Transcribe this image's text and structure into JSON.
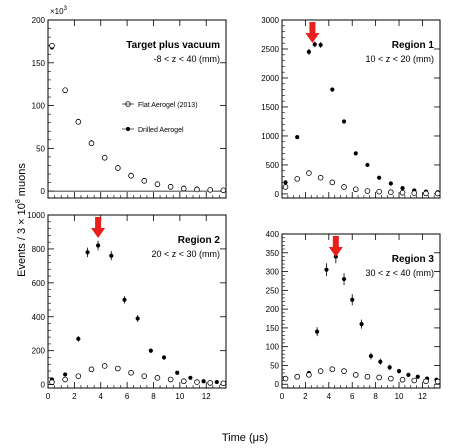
{
  "figure": {
    "ylabel": "Events / 3 × 10",
    "ylabel_exp": "8",
    "ylabel_suffix": " muons",
    "xlabel": "Time (μs)",
    "offset_label": "×10",
    "offset_exp": "3",
    "legend": {
      "open_label": "Flat Aerogel (2013)",
      "filled_label": "Drilled Aerogel"
    }
  },
  "chart_data": [
    {
      "type": "scatter",
      "title": "Target plus vacuum",
      "range_label": "-8 < z < 40 (mm)",
      "xlim": [
        0,
        13.5
      ],
      "ylim": [
        -8,
        200
      ],
      "y_ticks": [
        0,
        50,
        100,
        150,
        200
      ],
      "y_tick_labels": [
        "0",
        "50",
        "100",
        "150",
        "200"
      ],
      "x_ticks": [
        0,
        2,
        4,
        6,
        8,
        10,
        12
      ],
      "x_tick_labels": [
        "0",
        "2",
        "4",
        "6",
        "8",
        "10",
        "12"
      ],
      "show_x_tick_labels": false,
      "zero_line": true,
      "show_legend": true,
      "arrow_x": null,
      "series": [
        {
          "name": "Drilled Aerogel",
          "marker": "filled",
          "x": [
            0.3,
            1.3,
            2.3,
            3.3,
            4.3,
            5.3,
            6.3,
            7.3,
            8.3,
            9.3,
            10.3,
            11.3,
            12.3,
            13.3
          ],
          "y": [
            168,
            117,
            82,
            57,
            40,
            28,
            19,
            13,
            9,
            6,
            4,
            3,
            2,
            1.5
          ]
        },
        {
          "name": "Flat Aerogel (2013)",
          "marker": "open",
          "x": [
            0.3,
            1.3,
            2.3,
            3.3,
            4.3,
            5.3,
            6.3,
            7.3,
            8.3,
            9.3,
            10.3,
            11.3,
            12.3,
            13.3
          ],
          "y": [
            170,
            118,
            81,
            56,
            39,
            27,
            18,
            12,
            8,
            5,
            3,
            2,
            1.5,
            1
          ]
        }
      ]
    },
    {
      "type": "scatter",
      "title": "Region 1",
      "range_label": "10 < z < 20 (mm)",
      "xlim": [
        0,
        13.5
      ],
      "ylim": [
        -70,
        3000
      ],
      "y_ticks": [
        0,
        500,
        1000,
        1500,
        2000,
        2500,
        3000
      ],
      "y_tick_labels": [
        "0",
        "500",
        "1000",
        "1500",
        "2000",
        "2500",
        "3000"
      ],
      "x_ticks": [
        0,
        2,
        4,
        6,
        8,
        10,
        12
      ],
      "x_tick_labels": [
        "0",
        "2",
        "4",
        "6",
        "8",
        "10",
        "12"
      ],
      "show_x_tick_labels": false,
      "zero_line": false,
      "show_legend": false,
      "arrow_x": 2.6,
      "series": [
        {
          "name": "Drilled Aerogel",
          "marker": "filled",
          "x": [
            0.3,
            1.3,
            2.3,
            2.8,
            3.3,
            4.3,
            5.3,
            6.3,
            7.3,
            8.3,
            9.3,
            10.3,
            11.3,
            12.3,
            13.3
          ],
          "y": [
            200,
            980,
            2450,
            2580,
            2570,
            1800,
            1250,
            700,
            500,
            280,
            180,
            100,
            60,
            40,
            30
          ],
          "err": [
            20,
            30,
            50,
            50,
            50,
            40,
            35,
            25,
            22,
            17,
            13,
            10,
            8,
            6,
            5
          ]
        },
        {
          "name": "Flat Aerogel (2013)",
          "marker": "open",
          "x": [
            0.3,
            1.3,
            2.3,
            3.3,
            4.3,
            5.3,
            6.3,
            7.3,
            8.3,
            9.3,
            10.3,
            11.3,
            12.3,
            13.3
          ],
          "y": [
            120,
            260,
            360,
            280,
            200,
            120,
            80,
            50,
            40,
            30,
            20,
            15,
            10,
            8
          ]
        }
      ]
    },
    {
      "type": "scatter",
      "title": "Region 2",
      "range_label": "20 < z < 30 (mm)",
      "xlim": [
        0,
        13.5
      ],
      "ylim": [
        -20,
        1000
      ],
      "y_ticks": [
        0,
        200,
        400,
        600,
        800,
        1000
      ],
      "y_tick_labels": [
        "0",
        "200",
        "400",
        "600",
        "800",
        "1000"
      ],
      "x_ticks": [
        0,
        2,
        4,
        6,
        8,
        10,
        12
      ],
      "x_tick_labels": [
        "0",
        "2",
        "4",
        "6",
        "8",
        "10",
        "12"
      ],
      "show_x_tick_labels": true,
      "zero_line": false,
      "show_legend": false,
      "arrow_x": 3.8,
      "series": [
        {
          "name": "Drilled Aerogel",
          "marker": "filled",
          "x": [
            0.3,
            1.3,
            2.3,
            3.0,
            3.8,
            4.8,
            5.8,
            6.8,
            7.8,
            8.8,
            9.8,
            10.8,
            11.8,
            12.8
          ],
          "y": [
            30,
            60,
            270,
            780,
            820,
            760,
            500,
            390,
            200,
            160,
            70,
            40,
            20,
            15
          ],
          "err": [
            8,
            10,
            17,
            28,
            28,
            27,
            22,
            20,
            14,
            13,
            8,
            6,
            5,
            4
          ]
        },
        {
          "name": "Flat Aerogel (2013)",
          "marker": "open",
          "x": [
            0.3,
            1.3,
            2.3,
            3.3,
            4.3,
            5.3,
            6.3,
            7.3,
            8.3,
            9.3,
            10.3,
            11.3,
            12.3,
            13.3
          ],
          "y": [
            15,
            30,
            50,
            90,
            110,
            95,
            70,
            50,
            40,
            30,
            20,
            15,
            10,
            8
          ]
        }
      ]
    },
    {
      "type": "scatter",
      "title": "Region 3",
      "range_label": "30 < z < 40 (mm)",
      "xlim": [
        0,
        13.5
      ],
      "ylim": [
        -10,
        400
      ],
      "y_ticks": [
        0,
        50,
        100,
        150,
        200,
        250,
        300,
        350,
        400
      ],
      "y_tick_labels": [
        "0",
        "50",
        "100",
        "150",
        "200",
        "250",
        "300",
        "350",
        "400"
      ],
      "x_ticks": [
        0,
        2,
        4,
        6,
        8,
        10,
        12
      ],
      "x_tick_labels": [
        "0",
        "2",
        "4",
        "6",
        "8",
        "10",
        "12"
      ],
      "show_x_tick_labels": true,
      "zero_line": false,
      "show_legend": false,
      "arrow_x": 4.6,
      "series": [
        {
          "name": "Drilled Aerogel",
          "marker": "filled",
          "x": [
            0.3,
            1.3,
            2.3,
            3.0,
            3.8,
            4.6,
            5.3,
            6.0,
            6.8,
            7.6,
            8.4,
            9.2,
            10.0,
            10.8,
            11.6,
            12.4,
            13.2
          ],
          "y": [
            15,
            20,
            30,
            140,
            305,
            340,
            280,
            225,
            160,
            75,
            60,
            45,
            35,
            25,
            20,
            15,
            12
          ],
          "err": [
            4,
            5,
            6,
            12,
            17,
            18,
            16,
            15,
            12,
            9,
            8,
            7,
            6,
            5,
            5,
            4,
            4
          ]
        },
        {
          "name": "Flat Aerogel (2013)",
          "marker": "open",
          "x": [
            0.3,
            1.3,
            2.3,
            3.3,
            4.3,
            5.3,
            6.3,
            7.3,
            8.3,
            9.3,
            10.3,
            11.3,
            12.3,
            13.3
          ],
          "y": [
            15,
            20,
            25,
            35,
            40,
            35,
            25,
            20,
            18,
            15,
            12,
            10,
            8,
            7
          ]
        }
      ]
    }
  ]
}
